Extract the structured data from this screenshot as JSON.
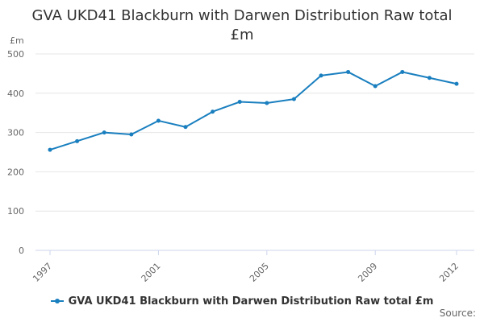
{
  "title_line1": "GVA UKD41 Blackburn with Darwen Distribution Raw total",
  "title_line2": "£m",
  "unit_label": "£m",
  "source_label": "Source:",
  "colors": {
    "series": "#1a7fbf",
    "grid": "#e6e6e6",
    "axis": "#ccd6eb",
    "tick_text": "#666666"
  },
  "chart_data": {
    "type": "line",
    "title": "GVA UKD41 Blackburn with Darwen Distribution Raw total £m",
    "ylabel": "£m",
    "ylim": [
      0,
      500
    ],
    "yticks": [
      0,
      100,
      200,
      300,
      400,
      500
    ],
    "xlim": [
      1997,
      2012
    ],
    "xticks": [
      1997,
      2001,
      2005,
      2009,
      2012
    ],
    "grid": true,
    "legend_position": "bottom",
    "series": [
      {
        "name": "GVA UKD41 Blackburn with Darwen Distribution Raw total £m",
        "x": [
          1997,
          1998,
          1999,
          2000,
          2001,
          2002,
          2003,
          2004,
          2005,
          2006,
          2007,
          2008,
          2009,
          2010,
          2011,
          2012
        ],
        "values": [
          256,
          278,
          300,
          295,
          330,
          314,
          353,
          378,
          375,
          385,
          445,
          454,
          418,
          454,
          439,
          424
        ]
      }
    ]
  }
}
